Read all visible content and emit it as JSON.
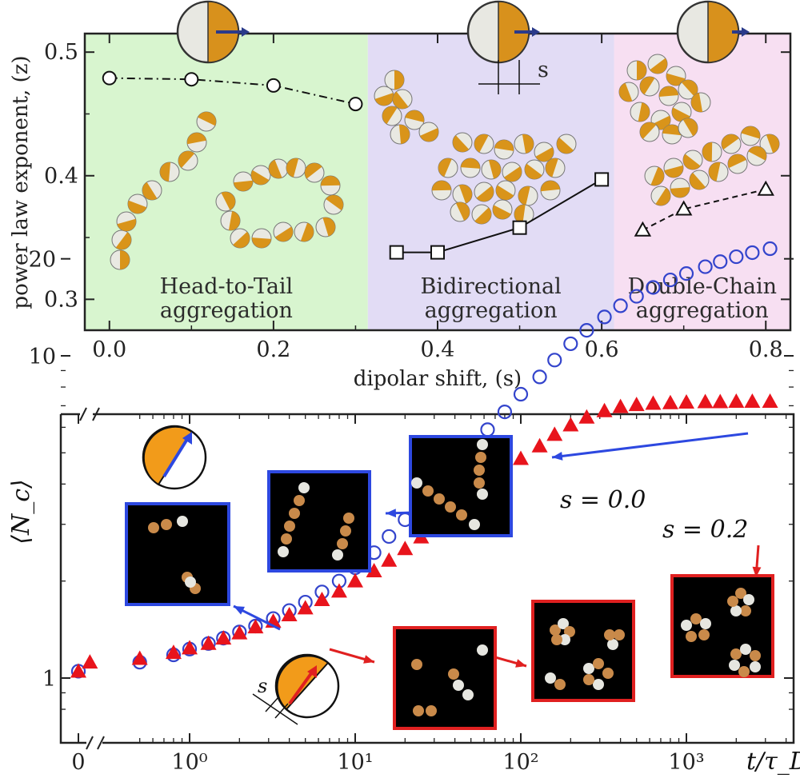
{
  "chart_data": [
    {
      "type": "line",
      "xlabel": "dipolar shift, (s)",
      "ylabel": "power law exponent, (z)",
      "xlim": [
        -0.03,
        0.83
      ],
      "ylim": [
        0.275,
        0.515
      ],
      "x_ticks": [
        "0.0",
        "0.2",
        "0.4",
        "0.6",
        "0.8"
      ],
      "y_ticks": [
        "0.3",
        "0.4",
        "0.5"
      ],
      "regions": [
        {
          "label": [
            "Head-to-Tail",
            "aggregation"
          ],
          "from": -0.03,
          "to": 0.315,
          "color": "#d8f5cf"
        },
        {
          "label": [
            "Bidirectional",
            "aggregation"
          ],
          "from": 0.315,
          "to": 0.615,
          "color": "#e2dcf5"
        },
        {
          "label": [
            "Double-Chain",
            "aggregation"
          ],
          "from": 0.615,
          "to": 0.83,
          "color": "#f7dff2"
        }
      ],
      "dimension_label": "s",
      "series": [
        {
          "marker": "circle",
          "line": "dash-dot",
          "x": [
            0.0,
            0.1,
            0.2,
            0.3
          ],
          "y": [
            0.479,
            0.478,
            0.473,
            0.458
          ]
        },
        {
          "marker": "square",
          "line": "solid",
          "x": [
            0.35,
            0.4,
            0.5,
            0.6
          ],
          "y": [
            0.338,
            0.338,
            0.358,
            0.397
          ]
        },
        {
          "marker": "triangle",
          "line": "dashed",
          "x": [
            0.65,
            0.7,
            0.8
          ],
          "y": [
            0.356,
            0.373,
            0.389
          ]
        }
      ]
    },
    {
      "type": "scatter",
      "xlabel": "t/τ_D",
      "ylabel": "⟨N_c⟩",
      "xscale": "log",
      "yscale": "log",
      "x_ticks": [
        "0",
        "10⁰",
        "10¹",
        "10²",
        "10³"
      ],
      "y_ticks": [
        "1",
        "10",
        "20"
      ],
      "annotation_s": "s",
      "series": [
        {
          "name": "s = 0.0",
          "color": "#3344cc",
          "marker": "open-circle",
          "x": [
            0,
            0.5,
            0.8,
            1.0,
            1.3,
            1.6,
            2.0,
            2.5,
            3.2,
            4.0,
            5.0,
            6.3,
            8.0,
            10,
            13,
            16,
            20,
            25,
            32,
            40,
            50,
            63,
            80,
            100,
            130,
            160,
            200,
            250,
            320,
            400,
            500,
            630,
            800,
            1000,
            1300,
            1600,
            2000,
            2500,
            3200
          ],
          "y": [
            1.05,
            1.12,
            1.18,
            1.23,
            1.28,
            1.33,
            1.39,
            1.45,
            1.53,
            1.62,
            1.72,
            1.85,
            2.0,
            2.2,
            2.45,
            2.75,
            3.1,
            3.5,
            4.0,
            4.55,
            5.2,
            5.9,
            6.7,
            7.6,
            8.6,
            9.7,
            10.9,
            12.0,
            13.2,
            14.3,
            15.3,
            16.3,
            17.2,
            18.0,
            18.9,
            19.6,
            20.3,
            20.9,
            21.5
          ]
        },
        {
          "name": "s = 0.2",
          "color": "#e8141c",
          "marker": "filled-triangle",
          "x": [
            0,
            0.25,
            0.5,
            0.8,
            1.0,
            1.3,
            1.6,
            2.0,
            2.5,
            3.2,
            4.0,
            5.0,
            6.3,
            8.0,
            10,
            13,
            16,
            20,
            25,
            32,
            40,
            50,
            63,
            80,
            100,
            130,
            160,
            200,
            250,
            320,
            400,
            500,
            630,
            800,
            1000,
            1300,
            1600,
            2000,
            2500,
            3200
          ],
          "y": [
            1.05,
            1.12,
            1.15,
            1.2,
            1.24,
            1.28,
            1.33,
            1.38,
            1.44,
            1.5,
            1.57,
            1.65,
            1.75,
            1.86,
            2.0,
            2.15,
            2.32,
            2.52,
            2.74,
            3.0,
            3.3,
            3.62,
            3.98,
            4.38,
            4.8,
            5.25,
            5.7,
            6.1,
            6.45,
            6.75,
            6.95,
            7.05,
            7.12,
            7.15,
            7.18,
            7.2,
            7.2,
            7.22,
            7.22,
            7.22
          ]
        }
      ]
    }
  ]
}
